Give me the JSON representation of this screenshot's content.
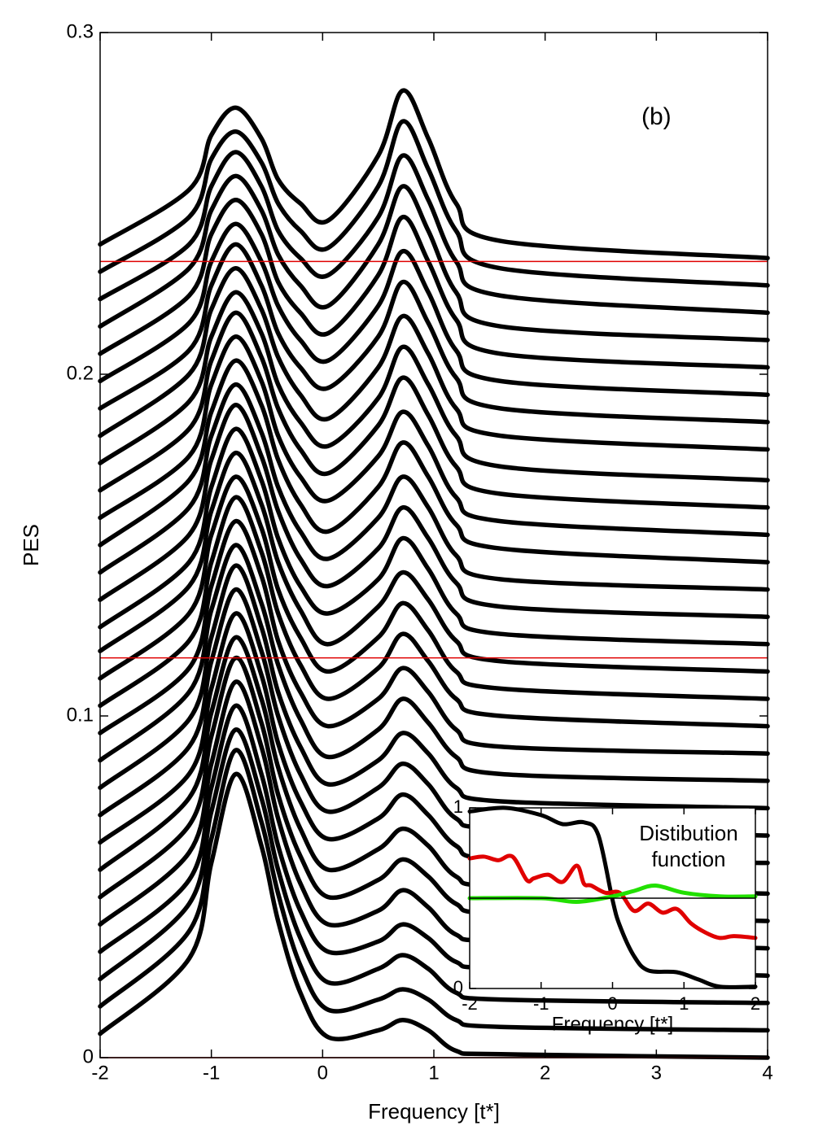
{
  "chart_data": [
    {
      "type": "line",
      "xlabel": "Frequency [t*]",
      "ylabel": "PES",
      "annotation": "(b)",
      "annotation_pos": [
        3,
        0.275
      ],
      "xlim": [
        -2,
        4
      ],
      "ylim": [
        0,
        0.3
      ],
      "xticks": [
        -2,
        -1,
        0,
        1,
        2,
        3,
        4
      ],
      "yticks": [
        0,
        0.1,
        0.2,
        0.3
      ],
      "hlines": {
        "values": [
          0,
          0.117,
          0.233
        ],
        "color": "#e00000"
      },
      "x": [
        -2,
        -1.2,
        -1.0,
        -0.78,
        -0.55,
        -0.4,
        -0.2,
        0.05,
        0.5,
        0.72,
        0.95,
        1.2,
        1.6,
        4
      ],
      "series": [
        {
          "color": "#000",
          "values": [
            0.007,
            0.029,
            0.057,
            0.083,
            0.062,
            0.04,
            0.019,
            0.006,
            0.008,
            0.011,
            0.008,
            0.002,
            0.001,
            0
          ]
        },
        {
          "color": "#000",
          "values": [
            0.015,
            0.037,
            0.064,
            0.09,
            0.069,
            0.048,
            0.027,
            0.014,
            0.017,
            0.02,
            0.017,
            0.011,
            0.009,
            0.008
          ]
        },
        {
          "color": "#000",
          "values": [
            0.023,
            0.045,
            0.072,
            0.096,
            0.076,
            0.055,
            0.035,
            0.022,
            0.026,
            0.03,
            0.026,
            0.019,
            0.017,
            0.016
          ]
        },
        {
          "color": "#000",
          "values": [
            0.031,
            0.052,
            0.079,
            0.103,
            0.083,
            0.062,
            0.043,
            0.031,
            0.034,
            0.039,
            0.035,
            0.028,
            0.026,
            0.024
          ]
        },
        {
          "color": "#000",
          "values": [
            0.039,
            0.06,
            0.086,
            0.11,
            0.091,
            0.07,
            0.051,
            0.039,
            0.043,
            0.049,
            0.044,
            0.036,
            0.034,
            0.032
          ]
        },
        {
          "color": "#000",
          "values": [
            0.047,
            0.068,
            0.094,
            0.117,
            0.098,
            0.077,
            0.059,
            0.047,
            0.052,
            0.058,
            0.053,
            0.045,
            0.042,
            0.04
          ]
        },
        {
          "color": "#000",
          "values": [
            0.055,
            0.076,
            0.101,
            0.123,
            0.105,
            0.085,
            0.067,
            0.055,
            0.061,
            0.067,
            0.062,
            0.053,
            0.05,
            0.048
          ]
        },
        {
          "color": "#000",
          "values": [
            0.063,
            0.083,
            0.108,
            0.13,
            0.112,
            0.092,
            0.075,
            0.064,
            0.07,
            0.077,
            0.071,
            0.062,
            0.058,
            0.057
          ]
        },
        {
          "color": "#000",
          "values": [
            0.071,
            0.091,
            0.116,
            0.137,
            0.119,
            0.1,
            0.083,
            0.072,
            0.079,
            0.086,
            0.08,
            0.07,
            0.067,
            0.065
          ]
        },
        {
          "color": "#000",
          "values": [
            0.079,
            0.099,
            0.123,
            0.144,
            0.126,
            0.107,
            0.091,
            0.08,
            0.087,
            0.095,
            0.089,
            0.079,
            0.075,
            0.073
          ]
        },
        {
          "color": "#000",
          "values": [
            0.087,
            0.107,
            0.131,
            0.15,
            0.133,
            0.115,
            0.099,
            0.088,
            0.096,
            0.105,
            0.098,
            0.088,
            0.083,
            0.081
          ]
        },
        {
          "color": "#000",
          "values": [
            0.095,
            0.114,
            0.138,
            0.157,
            0.141,
            0.122,
            0.107,
            0.097,
            0.105,
            0.114,
            0.107,
            0.096,
            0.091,
            0.089
          ]
        },
        {
          "color": "#000",
          "values": [
            0.103,
            0.122,
            0.145,
            0.164,
            0.148,
            0.13,
            0.115,
            0.105,
            0.114,
            0.124,
            0.116,
            0.105,
            0.1,
            0.097
          ]
        },
        {
          "color": "#000",
          "values": [
            0.111,
            0.13,
            0.153,
            0.17,
            0.155,
            0.137,
            0.123,
            0.113,
            0.123,
            0.133,
            0.125,
            0.113,
            0.108,
            0.105
          ]
        },
        {
          "color": "#000",
          "values": [
            0.119,
            0.138,
            0.16,
            0.177,
            0.162,
            0.145,
            0.131,
            0.121,
            0.132,
            0.142,
            0.134,
            0.122,
            0.116,
            0.113
          ]
        },
        {
          "color": "#000",
          "values": [
            0.126,
            0.145,
            0.167,
            0.184,
            0.169,
            0.152,
            0.138,
            0.13,
            0.14,
            0.152,
            0.143,
            0.13,
            0.124,
            0.121
          ]
        },
        {
          "color": "#000",
          "values": [
            0.134,
            0.153,
            0.175,
            0.191,
            0.176,
            0.16,
            0.146,
            0.138,
            0.149,
            0.161,
            0.152,
            0.139,
            0.132,
            0.129
          ]
        },
        {
          "color": "#000",
          "values": [
            0.142,
            0.161,
            0.182,
            0.197,
            0.183,
            0.167,
            0.154,
            0.146,
            0.158,
            0.17,
            0.161,
            0.147,
            0.14,
            0.137
          ]
        },
        {
          "color": "#000",
          "values": [
            0.15,
            0.169,
            0.189,
            0.204,
            0.191,
            0.175,
            0.162,
            0.154,
            0.167,
            0.18,
            0.17,
            0.156,
            0.149,
            0.145
          ]
        },
        {
          "color": "#000",
          "values": [
            0.158,
            0.176,
            0.197,
            0.211,
            0.198,
            0.182,
            0.17,
            0.163,
            0.176,
            0.189,
            0.179,
            0.164,
            0.157,
            0.153
          ]
        },
        {
          "color": "#000",
          "values": [
            0.166,
            0.184,
            0.204,
            0.218,
            0.205,
            0.19,
            0.178,
            0.171,
            0.185,
            0.199,
            0.188,
            0.173,
            0.165,
            0.161
          ]
        },
        {
          "color": "#000",
          "values": [
            0.174,
            0.192,
            0.211,
            0.224,
            0.212,
            0.197,
            0.186,
            0.179,
            0.193,
            0.208,
            0.197,
            0.182,
            0.173,
            0.169
          ]
        },
        {
          "color": "#000",
          "values": [
            0.182,
            0.2,
            0.219,
            0.231,
            0.219,
            0.205,
            0.194,
            0.187,
            0.202,
            0.217,
            0.206,
            0.19,
            0.182,
            0.178
          ]
        },
        {
          "color": "#000",
          "values": [
            0.19,
            0.207,
            0.226,
            0.238,
            0.226,
            0.212,
            0.202,
            0.196,
            0.211,
            0.227,
            0.215,
            0.199,
            0.19,
            0.186
          ]
        },
        {
          "color": "#000",
          "values": [
            0.198,
            0.215,
            0.233,
            0.244,
            0.233,
            0.22,
            0.21,
            0.204,
            0.22,
            0.236,
            0.224,
            0.207,
            0.198,
            0.194
          ]
        },
        {
          "color": "#000",
          "values": [
            0.206,
            0.223,
            0.241,
            0.251,
            0.241,
            0.227,
            0.218,
            0.212,
            0.229,
            0.246,
            0.233,
            0.216,
            0.206,
            0.202
          ]
        },
        {
          "color": "#000",
          "values": [
            0.214,
            0.231,
            0.248,
            0.258,
            0.248,
            0.235,
            0.226,
            0.22,
            0.238,
            0.255,
            0.242,
            0.224,
            0.214,
            0.21
          ]
        },
        {
          "color": "#000",
          "values": [
            0.222,
            0.238,
            0.255,
            0.265,
            0.255,
            0.242,
            0.234,
            0.229,
            0.246,
            0.264,
            0.251,
            0.233,
            0.223,
            0.218
          ]
        },
        {
          "color": "#000",
          "values": [
            0.23,
            0.246,
            0.263,
            0.271,
            0.262,
            0.25,
            0.242,
            0.237,
            0.255,
            0.274,
            0.26,
            0.242,
            0.231,
            0.226
          ]
        },
        {
          "color": "#000",
          "values": [
            0.238,
            0.254,
            0.27,
            0.278,
            0.269,
            0.257,
            0.25,
            0.245,
            0.264,
            0.283,
            0.269,
            0.25,
            0.239,
            0.234
          ]
        }
      ]
    },
    {
      "type": "line",
      "xlabel": "Frequency [t*]",
      "annotation": [
        "Distibution",
        "function"
      ],
      "xlim": [
        -2,
        2
      ],
      "ylim": [
        0,
        1
      ],
      "xticks": [
        -2,
        -1,
        0,
        1,
        2
      ],
      "yticks": [
        0,
        1
      ],
      "hlines": {
        "values": [
          0.5
        ],
        "color": "#000"
      },
      "series": [
        {
          "color": "#000",
          "x": [
            -2,
            -1.5,
            -1,
            -0.7,
            -0.4,
            -0.2,
            0,
            0.1,
            0.3,
            0.5,
            0.9,
            1.2,
            1.5,
            2
          ],
          "values": [
            0.98,
            1.0,
            0.96,
            0.91,
            0.92,
            0.85,
            0.49,
            0.35,
            0.18,
            0.1,
            0.09,
            0.05,
            0.01,
            0.01
          ]
        },
        {
          "color": "#e00000",
          "x": [
            -2,
            -1.8,
            -1.6,
            -1.4,
            -1.2,
            -1.1,
            -0.9,
            -0.7,
            -0.5,
            -0.4,
            -0.3,
            -0.1,
            0.1,
            0.3,
            0.5,
            0.7,
            0.9,
            1.1,
            1.3,
            1.5,
            1.7,
            2
          ],
          "values": [
            0.72,
            0.73,
            0.71,
            0.73,
            0.6,
            0.61,
            0.63,
            0.59,
            0.68,
            0.58,
            0.57,
            0.53,
            0.53,
            0.43,
            0.47,
            0.42,
            0.44,
            0.36,
            0.31,
            0.28,
            0.29,
            0.28
          ]
        },
        {
          "color": "#22e000",
          "x": [
            -2,
            -1,
            -0.5,
            0,
            0.3,
            0.6,
            1,
            1.5,
            2
          ],
          "values": [
            0.5,
            0.5,
            0.48,
            0.51,
            0.54,
            0.57,
            0.53,
            0.51,
            0.51
          ]
        }
      ]
    }
  ]
}
